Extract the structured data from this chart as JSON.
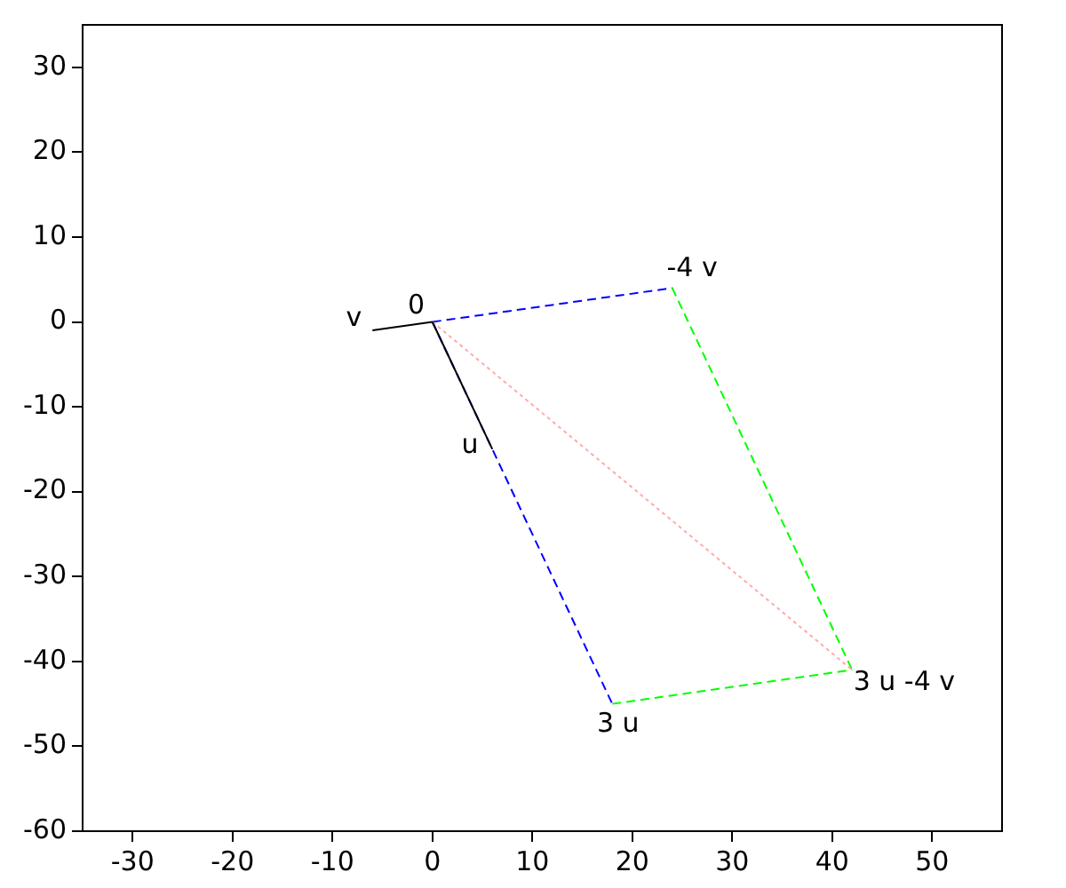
{
  "chart_data": {
    "type": "line",
    "xlim": [
      -35,
      57
    ],
    "ylim": [
      -60,
      35
    ],
    "xticks": [
      -30,
      -20,
      -10,
      0,
      10,
      20,
      30,
      40,
      50
    ],
    "yticks": [
      -60,
      -50,
      -40,
      -30,
      -20,
      -10,
      0,
      10,
      20,
      30
    ],
    "grid": false,
    "legend": false,
    "marker": "none",
    "series": [
      {
        "color": "#0000ff",
        "line_style": "dashed",
        "x": [
          0,
          18
        ],
        "values": [
          0,
          -45
        ]
      },
      {
        "color": "#0000ff",
        "line_style": "dashed",
        "x": [
          0,
          24
        ],
        "values": [
          0,
          4
        ]
      },
      {
        "color": "#00ff00",
        "line_style": "dashed",
        "x": [
          24,
          42
        ],
        "values": [
          4,
          -41
        ]
      },
      {
        "color": "#00ff00",
        "line_style": "dashed",
        "x": [
          18,
          42
        ],
        "values": [
          -45,
          -41
        ]
      },
      {
        "color": "#ffaaaa",
        "line_style": "dotted",
        "x": [
          0,
          42
        ],
        "values": [
          0,
          -41
        ]
      },
      {
        "color": "#000000",
        "line_style": "solid",
        "x": [
          0,
          6
        ],
        "values": [
          0,
          -15
        ]
      },
      {
        "color": "#000000",
        "line_style": "solid",
        "x": [
          0,
          -6
        ],
        "values": [
          0,
          -1
        ]
      }
    ],
    "annotations": [
      {
        "text": "0",
        "x": 0,
        "y": 0
      },
      {
        "text": "v",
        "x": -6,
        "y": -1
      },
      {
        "text": "-4 v",
        "x": 24,
        "y": 4
      },
      {
        "text": "u",
        "x": 6,
        "y": -15
      },
      {
        "text": "3 u",
        "x": 18,
        "y": -45
      },
      {
        "text": "3 u -4 v",
        "x": 42,
        "y": -41
      }
    ]
  }
}
